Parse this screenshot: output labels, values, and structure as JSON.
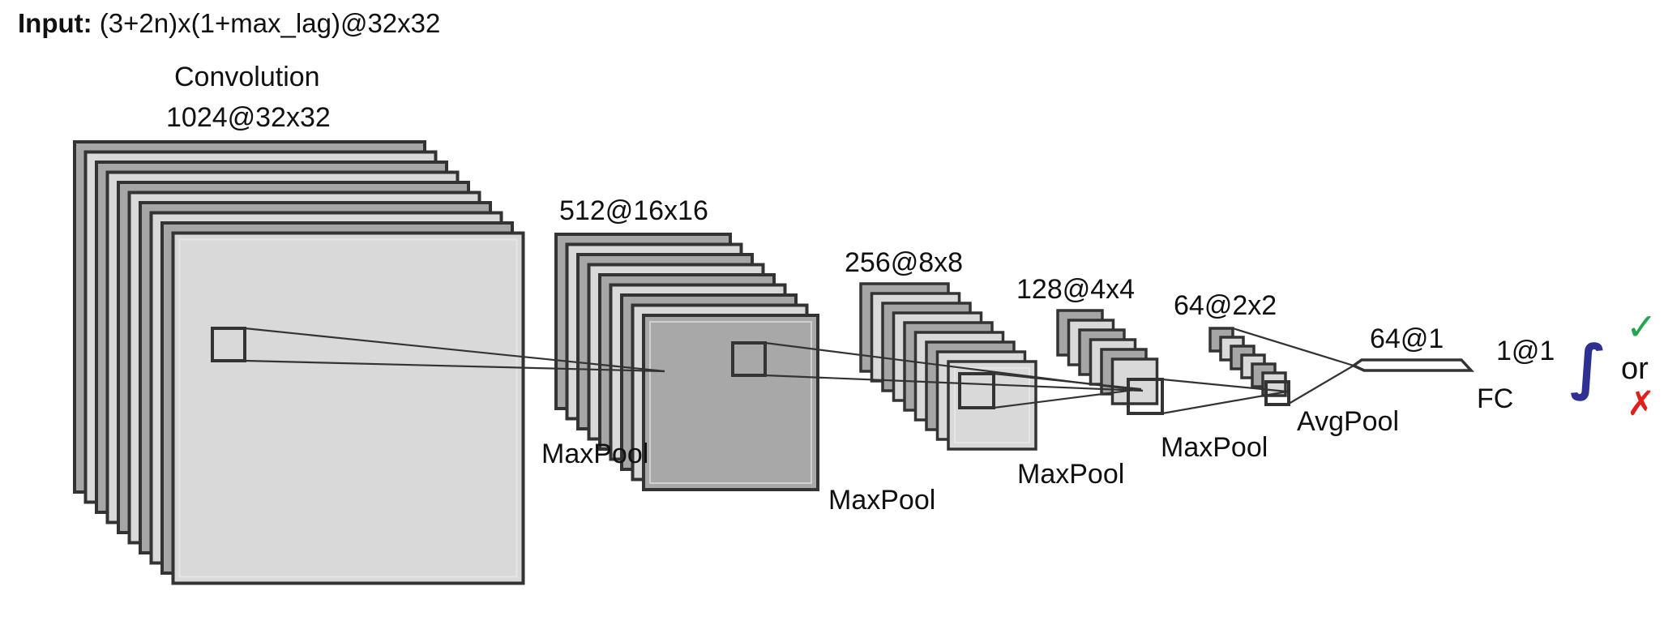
{
  "input": {
    "label": "Input:",
    "value": "(3+2n)x(1+max_lag)@32x32"
  },
  "stages": [
    {
      "id": "conv",
      "top_label_1": "Convolution",
      "top_label_2": "1024@32x32",
      "pool_label": "MaxPool"
    },
    {
      "id": "s2",
      "top_label": "512@16x16",
      "pool_label": "MaxPool"
    },
    {
      "id": "s3",
      "top_label": "256@8x8",
      "pool_label": "MaxPool"
    },
    {
      "id": "s4",
      "top_label": "128@4x4",
      "pool_label": "MaxPool"
    },
    {
      "id": "s5",
      "top_label": "64@2x2",
      "pool_label": "AvgPool"
    },
    {
      "id": "s6",
      "top_label": "64@1"
    },
    {
      "id": "fc",
      "top_label": "1@1",
      "bottom_label": "FC"
    }
  ],
  "output": {
    "or_text": "or",
    "check": "✓",
    "cross": "✗",
    "sigmoid": "∫"
  },
  "colors": {
    "stroke": "#333333",
    "fill_dark": "#a6a6a6",
    "fill_light": "#d9d9d9",
    "fill_front_mid": "#a8a8a8",
    "sigmoid": "#2e3192",
    "check": "#22a84a",
    "cross": "#e0201b"
  }
}
